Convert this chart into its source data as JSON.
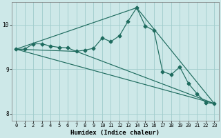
{
  "xlabel": "Humidex (Indice chaleur)",
  "bg_color": "#cde8e8",
  "grid_color": "#a0cccc",
  "line_color": "#1e6b5e",
  "xlim": [
    -0.5,
    23.5
  ],
  "ylim": [
    7.85,
    10.5
  ],
  "yticks": [
    8,
    9,
    10
  ],
  "xticks": [
    0,
    1,
    2,
    3,
    4,
    5,
    6,
    7,
    8,
    9,
    10,
    11,
    12,
    13,
    14,
    15,
    16,
    17,
    18,
    19,
    20,
    21,
    22,
    23
  ],
  "series1_x": [
    0,
    1,
    2,
    3,
    4,
    5,
    6,
    7,
    8,
    9,
    10,
    11,
    12,
    13,
    14,
    15,
    16,
    17,
    18,
    19,
    20,
    21,
    22,
    23
  ],
  "series1_y": [
    9.45,
    9.45,
    9.57,
    9.57,
    9.52,
    9.49,
    9.48,
    9.4,
    9.43,
    9.47,
    9.7,
    9.62,
    9.75,
    10.08,
    10.38,
    9.97,
    9.87,
    8.95,
    8.88,
    9.05,
    8.68,
    8.45,
    8.25,
    8.23
  ],
  "series2_x": [
    0,
    14,
    23
  ],
  "series2_y": [
    9.45,
    10.38,
    8.23
  ],
  "series3_x": [
    0,
    23
  ],
  "series3_y": [
    9.45,
    8.23
  ],
  "series4_x": [
    0,
    7,
    23
  ],
  "series4_y": [
    9.45,
    9.4,
    8.23
  ]
}
